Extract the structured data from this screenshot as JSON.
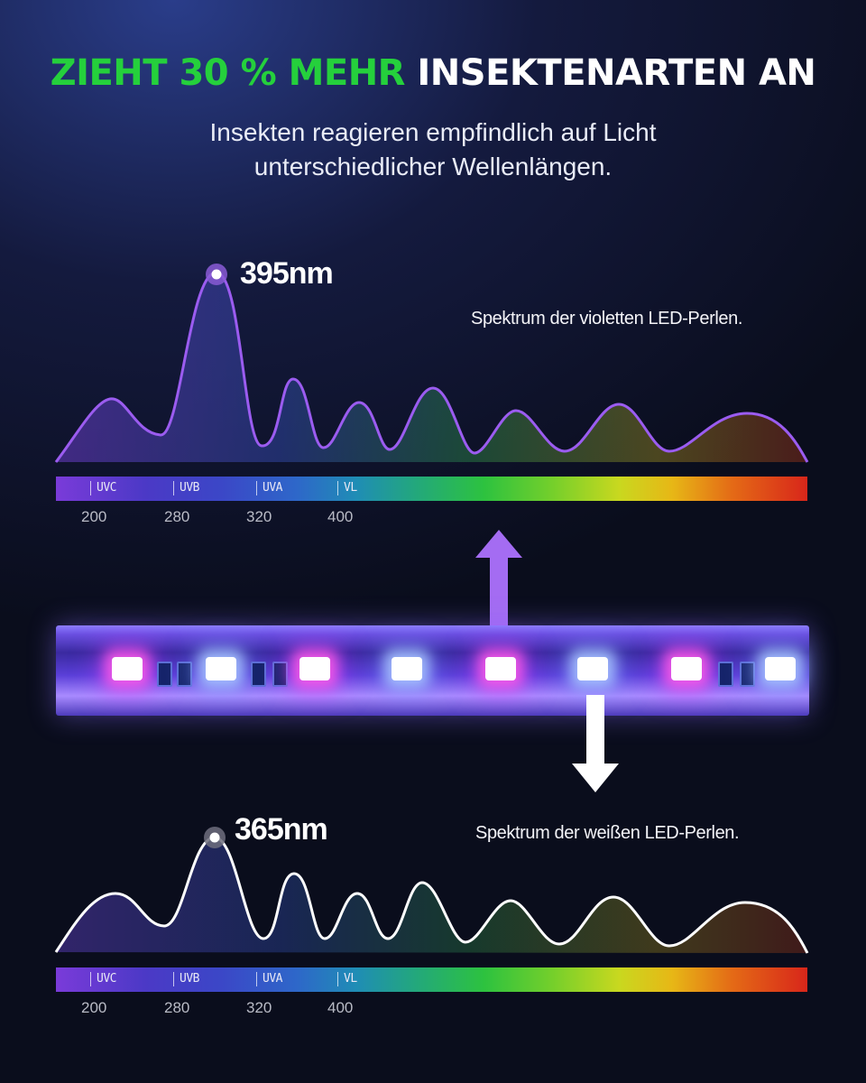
{
  "headline": {
    "highlight": "ZIEHT 30 % MEHR",
    "rest": "INSEKTENARTEN AN"
  },
  "subtitle": {
    "line1": "Insekten reagieren empfindlich auf Licht",
    "line2": "unterschiedlicher Wellenlängen."
  },
  "violet": {
    "peak_label": "395nm",
    "caption": "Spektrum der violetten LED-Perlen.",
    "curve_color": "#9b5cf0",
    "bands": [
      "UVC",
      "UVB",
      "UVA",
      "VL"
    ],
    "ticks": [
      "200",
      "280",
      "320",
      "400"
    ]
  },
  "white": {
    "peak_label": "365nm",
    "caption": "Spektrum der weißen LED-Perlen.",
    "curve_color": "#ffffff",
    "bands": [
      "UVC",
      "UVB",
      "UVA",
      "VL"
    ],
    "ticks": [
      "200",
      "280",
      "320",
      "400"
    ]
  },
  "colors": {
    "accent_green": "#25d03c",
    "arrow_violet": "#a46cf2",
    "arrow_white": "#ffffff"
  },
  "icons": {
    "up_arrow": "up-arrow-icon",
    "down_arrow": "down-arrow-icon"
  }
}
